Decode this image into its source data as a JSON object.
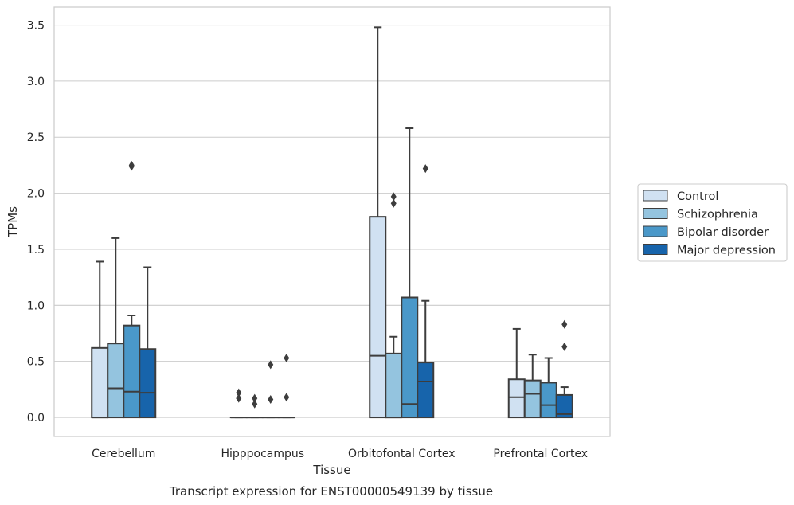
{
  "caption": "Transcript expression for ENST00000549139 by tissue",
  "chart_data": {
    "type": "boxplot",
    "xlabel": "Tissue",
    "ylabel": "TPMs",
    "ylim": [
      -0.17,
      3.66
    ],
    "yticks": [
      "0.0",
      "0.5",
      "1.0",
      "1.5",
      "2.0",
      "2.5",
      "3.0",
      "3.5"
    ],
    "grid": "horizontal",
    "legend_placement": "right",
    "categories": [
      "Cerebellum",
      "Hipppocampus",
      "Orbitofontal Cortex",
      "Prefrontal Cortex"
    ],
    "series": [
      {
        "name": "Control",
        "color": "#d0e1f2",
        "boxes": [
          {
            "q1": 0.0,
            "median": 0.0,
            "q3": 0.62,
            "whisker_low": 0.0,
            "whisker_high": 1.39,
            "outliers": []
          },
          {
            "q1": 0.0,
            "median": 0.0,
            "q3": 0.0,
            "whisker_low": 0.0,
            "whisker_high": 0.0,
            "outliers": [
              0.17,
              0.22
            ]
          },
          {
            "q1": 0.0,
            "median": 0.55,
            "q3": 1.79,
            "whisker_low": 0.0,
            "whisker_high": 3.48,
            "outliers": []
          },
          {
            "q1": 0.0,
            "median": 0.18,
            "q3": 0.34,
            "whisker_low": 0.0,
            "whisker_high": 0.79,
            "outliers": []
          }
        ]
      },
      {
        "name": "Schizophrenia",
        "color": "#94c4df",
        "boxes": [
          {
            "q1": 0.0,
            "median": 0.26,
            "q3": 0.66,
            "whisker_low": 0.0,
            "whisker_high": 1.6,
            "outliers": []
          },
          {
            "q1": 0.0,
            "median": 0.0,
            "q3": 0.0,
            "whisker_low": 0.0,
            "whisker_high": 0.0,
            "outliers": [
              0.12,
              0.17
            ]
          },
          {
            "q1": 0.0,
            "median": 0.0,
            "q3": 0.57,
            "whisker_low": 0.0,
            "whisker_high": 0.72,
            "outliers": [
              1.91,
              1.97
            ]
          },
          {
            "q1": 0.0,
            "median": 0.21,
            "q3": 0.33,
            "whisker_low": 0.0,
            "whisker_high": 0.56,
            "outliers": []
          }
        ]
      },
      {
        "name": "Bipolar disorder",
        "color": "#4a98c9",
        "boxes": [
          {
            "q1": 0.0,
            "median": 0.23,
            "q3": 0.82,
            "whisker_low": 0.0,
            "whisker_high": 0.91,
            "outliers": [
              2.24,
              2.25
            ]
          },
          {
            "q1": 0.0,
            "median": 0.0,
            "q3": 0.0,
            "whisker_low": 0.0,
            "whisker_high": 0.0,
            "outliers": [
              0.16,
              0.47
            ]
          },
          {
            "q1": 0.0,
            "median": 0.12,
            "q3": 1.07,
            "whisker_low": 0.0,
            "whisker_high": 2.58,
            "outliers": []
          },
          {
            "q1": 0.0,
            "median": 0.11,
            "q3": 0.31,
            "whisker_low": 0.0,
            "whisker_high": 0.53,
            "outliers": []
          }
        ]
      },
      {
        "name": "Major depression",
        "color": "#1764ab",
        "boxes": [
          {
            "q1": 0.0,
            "median": 0.22,
            "q3": 0.61,
            "whisker_low": 0.0,
            "whisker_high": 1.34,
            "outliers": []
          },
          {
            "q1": 0.0,
            "median": 0.0,
            "q3": 0.0,
            "whisker_low": 0.0,
            "whisker_high": 0.0,
            "outliers": [
              0.18,
              0.53
            ]
          },
          {
            "q1": 0.0,
            "median": 0.32,
            "q3": 0.49,
            "whisker_low": 0.0,
            "whisker_high": 1.04,
            "outliers": [
              2.22
            ]
          },
          {
            "q1": 0.0,
            "median": 0.03,
            "q3": 0.2,
            "whisker_low": 0.0,
            "whisker_high": 0.27,
            "outliers": [
              0.63,
              0.83
            ]
          }
        ]
      }
    ]
  }
}
